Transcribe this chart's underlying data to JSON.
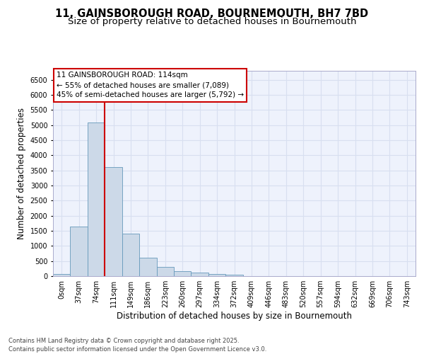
{
  "title_line1": "11, GAINSBOROUGH ROAD, BOURNEMOUTH, BH7 7BD",
  "title_line2": "Size of property relative to detached houses in Bournemouth",
  "xlabel": "Distribution of detached houses by size in Bournemouth",
  "ylabel": "Number of detached properties",
  "bar_color": "#ccd9e8",
  "bar_edge_color": "#6699bb",
  "bin_labels": [
    "0sqm",
    "37sqm",
    "74sqm",
    "111sqm",
    "149sqm",
    "186sqm",
    "223sqm",
    "260sqm",
    "297sqm",
    "334sqm",
    "372sqm",
    "409sqm",
    "446sqm",
    "483sqm",
    "520sqm",
    "557sqm",
    "594sqm",
    "632sqm",
    "669sqm",
    "706sqm",
    "743sqm"
  ],
  "bar_values": [
    75,
    1650,
    5100,
    3620,
    1400,
    610,
    305,
    155,
    120,
    75,
    40,
    5,
    0,
    0,
    0,
    0,
    0,
    0,
    0,
    0,
    0
  ],
  "ylim": [
    0,
    6800
  ],
  "yticks": [
    0,
    500,
    1000,
    1500,
    2000,
    2500,
    3000,
    3500,
    4000,
    4500,
    5000,
    5500,
    6000,
    6500
  ],
  "vline_color": "#cc0000",
  "vline_x": 2.5,
  "annotation_box_text": "11 GAINSBOROUGH ROAD: 114sqm\n← 55% of detached houses are smaller (7,089)\n45% of semi-detached houses are larger (5,792) →",
  "grid_color": "#d8dff0",
  "background_color": "#eef2fc",
  "footer_text": "Contains HM Land Registry data © Crown copyright and database right 2025.\nContains public sector information licensed under the Open Government Licence v3.0.",
  "title_fontsize": 10.5,
  "subtitle_fontsize": 9.5,
  "axis_label_fontsize": 8.5,
  "tick_fontsize": 7,
  "annotation_fontsize": 7.5,
  "footer_fontsize": 6
}
